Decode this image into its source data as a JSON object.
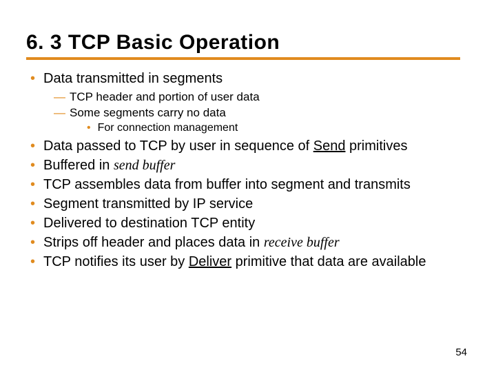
{
  "title": "6. 3 TCP Basic Operation",
  "accent_color": "#e08b1f",
  "text_color": "#000000",
  "background_color": "#ffffff",
  "page_number": "54",
  "bullets": {
    "b0": "Data transmitted in segments",
    "b0_0": "TCP header and portion of user data",
    "b0_1": "Some segments carry no data",
    "b0_1_0": "For connection management",
    "b1_pre": "Data passed to TCP by user in sequence of ",
    "b1_u": "Send",
    "b1_post": " primitives",
    "b2_pre": "Buffered in ",
    "b2_i": "send buffer",
    "b3": "TCP assembles data from buffer into segment and transmits",
    "b4": "Segment transmitted by IP service",
    "b5": "Delivered to destination TCP entity",
    "b6_pre": "Strips off header and places data in ",
    "b6_i": "receive buffer",
    "b7_pre": "TCP notifies its user by ",
    "b7_u": "Deliver",
    "b7_post": " primitive that data are available"
  }
}
